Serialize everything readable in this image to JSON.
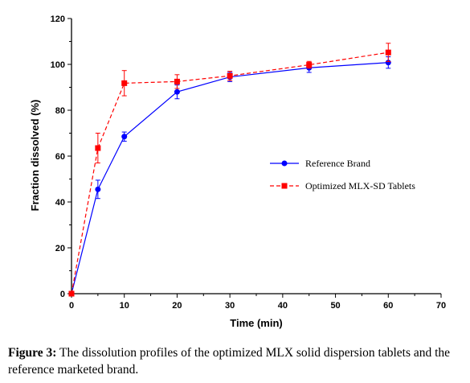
{
  "chart_data": {
    "type": "line",
    "title": "",
    "xlabel": "Time (min)",
    "ylabel": "Fraction dissolved (%)",
    "xlim": [
      0,
      70
    ],
    "ylim": [
      0,
      120
    ],
    "x_ticks": [
      0,
      10,
      20,
      30,
      40,
      50,
      60,
      70
    ],
    "y_ticks": [
      0,
      20,
      40,
      60,
      80,
      100,
      120
    ],
    "grid": false,
    "legend_position": "center-right",
    "series": [
      {
        "name": "Reference Brand",
        "color": "#0000ff",
        "line_style": "solid",
        "marker": "circle",
        "x": [
          0,
          5,
          10,
          20,
          30,
          45,
          60
        ],
        "y": [
          0,
          45.5,
          68.5,
          88,
          94.5,
          98.5,
          100.8
        ],
        "error": [
          0,
          4,
          2,
          3,
          2,
          2,
          2.5
        ]
      },
      {
        "name": "Optimized MLX-SD Tablets",
        "color": "#ff0000",
        "line_style": "dashed",
        "marker": "square",
        "x": [
          0,
          5,
          10,
          20,
          30,
          45,
          60
        ],
        "y": [
          0,
          63.5,
          91.8,
          92.5,
          95,
          99.8,
          105.2
        ],
        "error": [
          0,
          6.5,
          5.5,
          3,
          2,
          1.5,
          4
        ]
      }
    ]
  },
  "caption": {
    "label": "Figure 3:",
    "text": " The dissolution profiles of the optimized MLX solid dispersion tablets and the reference marketed brand."
  }
}
